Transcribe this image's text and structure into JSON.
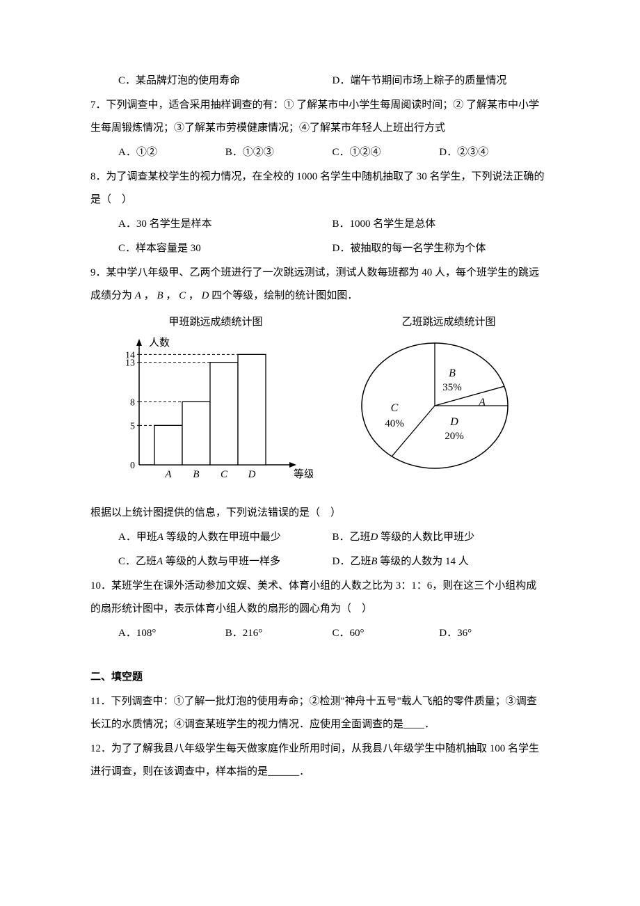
{
  "q6": {
    "optC": "C．某品牌灯泡的使用寿命",
    "optD": "D．端午节期间市场上粽子的质量情况"
  },
  "q7": {
    "stem": "7．下列调查中，适合采用抽样调查的有：① 了解某市中小学生每周阅读时间；② 了解某市中小学生每周锻炼情况；③了解某市劳模健康情况；④了解某市年轻人上班出行方式",
    "optA": "A．①②",
    "optB": "B．①②③",
    "optC": "C．①②④",
    "optD": "D．②③④"
  },
  "q8": {
    "stem": "8．为了调查某校学生的视力情况，在全校的 1000 名学生中随机抽取了 30 名学生，下列说法正确的是（　）",
    "optA": "A．30 名学生是样本",
    "optB": "B．1000 名学生是总体",
    "optC": "C．样本容量是 30",
    "optD": "D．被抽取的每一名学生称为个体"
  },
  "q9": {
    "stem1": "9．某中学八年级甲、乙两个班进行了一次跳远测试，测试人数每班都为 40 人，每个班学生的跳远成绩分为",
    "stem2": "四个等级，绘制的统计图如图．",
    "grades": [
      "A",
      "B",
      "C",
      "D"
    ],
    "postChart": "根据以上统计图提供的信息，下列说法错误的是（　）",
    "optA_pre": "A．甲班",
    "optA_mid": "A",
    "optA_post": " 等级的人数在甲班中最少",
    "optB_pre": "B．乙班",
    "optB_mid": "D",
    "optB_post": " 等级的人数比甲班少",
    "optC_pre": "C．乙班",
    "optC_mid": "A",
    "optC_post": " 等级的人数与甲班一样多",
    "optD_pre": "D．乙班",
    "optD_mid": "B",
    "optD_post": " 等级的人数为 14 人",
    "barChart": {
      "title": "甲班跳远成绩统计图",
      "yLabel": "人数",
      "xLabel": "等级",
      "yTicks": [
        0,
        5,
        8,
        13,
        14
      ],
      "categories": [
        "A",
        "B",
        "C",
        "D"
      ],
      "values": [
        5,
        8,
        13,
        14
      ],
      "axisColor": "#000000",
      "barFill": "#ffffff",
      "barStroke": "#000000",
      "dashColor": "#000000",
      "labelColor": "#000000"
    },
    "pieChart": {
      "title": "乙班跳远成绩统计图",
      "slices": [
        {
          "label": "A",
          "percent": null,
          "percentText": ""
        },
        {
          "label": "B",
          "percent": 35,
          "percentText": "35%"
        },
        {
          "label": "C",
          "percent": 40,
          "percentText": "40%"
        },
        {
          "label": "D",
          "percent": 20,
          "percentText": "20%"
        }
      ],
      "stroke": "#000000",
      "fill": "#ffffff",
      "labelColor": "#000000"
    }
  },
  "q10": {
    "stem": "10．某班学生在课外活动参加文娱、美术、体育小组的人数之比为 3：1：6，则在这三个小组构成的扇形统计图中，表示体育小组人数的扇形的圆心角为（　）",
    "optA": "A．108°",
    "optB": "B．216°",
    "optC": "C．60°",
    "optD": "D．36°"
  },
  "section2": "二、填空题",
  "q11": {
    "stem": "11．下列调查中：①了解一批灯泡的使用寿命；②检测\"神舟十五号\"载人飞船的零件质量；③调查长江的水质情况；④调查某班学生的视力情况．应使用全面调查的是____．"
  },
  "q12": {
    "stem": "12．为了了解我县八年级学生每天做家庭作业所用时间，从我县八年级学生中随机抽取 100 名学生进行调查，则在该调查中，样本指的是______．"
  }
}
